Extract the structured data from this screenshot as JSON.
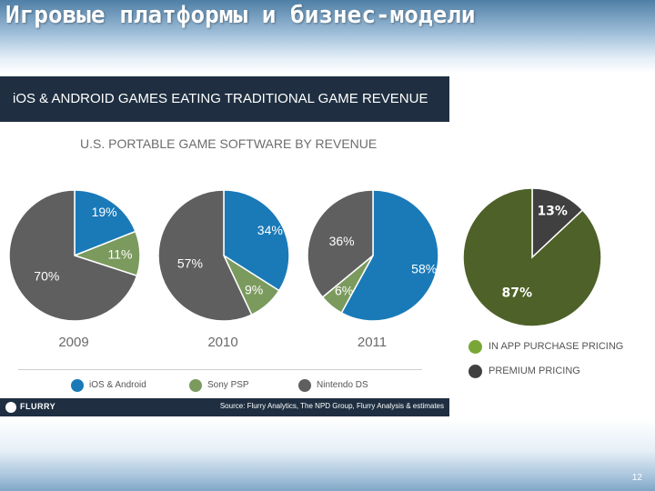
{
  "slide": {
    "title": "Игровые платформы и бизнес-модели",
    "page_number": "12"
  },
  "panel": {
    "header": "iOS & ANDROID GAMES EATING TRADITIONAL GAME REVENUE",
    "brand": "FLURRY",
    "source": "Source: Flurry Analytics, The NPD Group, Flurry Analysis & estimates"
  },
  "colors": {
    "ios_android": "#1a7ab8",
    "sony_psp": "#7b9a5e",
    "nintendo_ds": "#5f5f5f",
    "in_app": "#4e6128",
    "premium": "#404040",
    "in_app_legend": "#7aa637"
  },
  "chart_data": [
    {
      "type": "pie",
      "title": "U.S. PORTABLE GAME SOFTWARE BY REVENUE",
      "legend": [
        "iOS & Android",
        "Sony PSP",
        "Nintendo DS"
      ],
      "pies": [
        {
          "label": "2009",
          "slices": [
            {
              "name": "iOS & Android",
              "value": 19,
              "label": "19%"
            },
            {
              "name": "Sony PSP",
              "value": 11,
              "label": "11%"
            },
            {
              "name": "Nintendo DS",
              "value": 70,
              "label": "70%"
            }
          ]
        },
        {
          "label": "2010",
          "slices": [
            {
              "name": "iOS & Android",
              "value": 34,
              "label": "34%"
            },
            {
              "name": "Sony PSP",
              "value": 9,
              "label": "9%"
            },
            {
              "name": "Nintendo DS",
              "value": 57,
              "label": "57%"
            }
          ]
        },
        {
          "label": "2011",
          "slices": [
            {
              "name": "iOS & Android",
              "value": 58,
              "label": "58%"
            },
            {
              "name": "Sony PSP",
              "value": 6,
              "label": "6%"
            },
            {
              "name": "Nintendo DS",
              "value": 36,
              "label": "36%"
            }
          ]
        }
      ]
    },
    {
      "type": "pie",
      "legend": [
        "IN APP PURCHASE PRICING",
        "PREMIUM PRICING"
      ],
      "slices": [
        {
          "name": "PREMIUM PRICING",
          "value": 13,
          "label": "13%"
        },
        {
          "name": "IN APP PURCHASE PRICING",
          "value": 87,
          "label": "87%"
        }
      ]
    }
  ]
}
